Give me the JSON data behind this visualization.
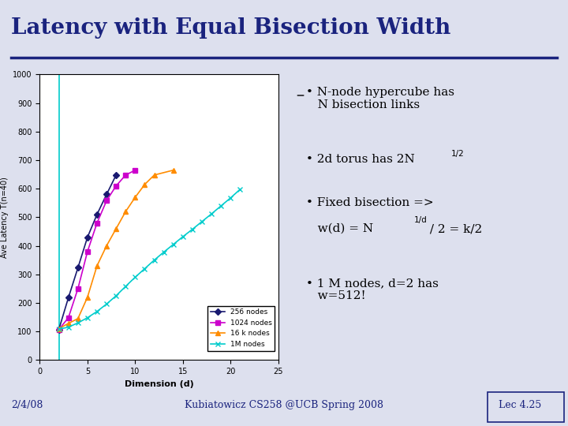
{
  "title": "Latency with Equal Bisection Width",
  "title_color": "#1a237e",
  "bg_color": "#dde0ee",
  "plot_bg": "#ffffff",
  "xlabel": "Dimension (d)",
  "ylabel": "Ave Latency T(n=40)",
  "xlim": [
    0,
    25
  ],
  "ylim": [
    0,
    1000
  ],
  "xticks": [
    0,
    5,
    10,
    15,
    20,
    25
  ],
  "yticks": [
    0,
    100,
    200,
    300,
    400,
    500,
    600,
    700,
    800,
    900,
    1000
  ],
  "series": [
    {
      "label": "256 nodes",
      "color": "#191970",
      "marker": "D",
      "markersize": 4,
      "linestyle": "-",
      "linewidth": 1.2,
      "d_values": [
        2,
        3,
        4,
        5,
        6,
        7,
        8
      ],
      "y_values": [
        107,
        218,
        323,
        430,
        510,
        580,
        648
      ]
    },
    {
      "label": "1024 nodes",
      "color": "#cc00cc",
      "marker": "s",
      "markersize": 4,
      "linestyle": "-",
      "linewidth": 1.2,
      "d_values": [
        2,
        3,
        4,
        5,
        6,
        7,
        8,
        9,
        10
      ],
      "y_values": [
        107,
        148,
        250,
        380,
        480,
        558,
        610,
        648,
        665
      ]
    },
    {
      "label": "16 k nodes",
      "color": "#ff8c00",
      "marker": "^",
      "markersize": 5,
      "linestyle": "-",
      "linewidth": 1.2,
      "d_values": [
        2,
        3,
        4,
        5,
        6,
        7,
        8,
        9,
        10,
        11,
        12,
        14
      ],
      "y_values": [
        110,
        128,
        145,
        220,
        330,
        400,
        460,
        520,
        570,
        615,
        648,
        665
      ]
    },
    {
      "label": "1M nodes",
      "color": "#00cccc",
      "marker": "x",
      "markersize": 5,
      "linestyle": "-",
      "linewidth": 1.2,
      "d_values": [
        2,
        3,
        4,
        5,
        6,
        7,
        8,
        9,
        10,
        11,
        12,
        13,
        14,
        15,
        16,
        17,
        18,
        19,
        20,
        21
      ],
      "y_values": [
        108,
        115,
        130,
        148,
        170,
        196,
        225,
        258,
        290,
        320,
        350,
        378,
        405,
        432,
        458,
        485,
        512,
        540,
        568,
        598
      ]
    }
  ],
  "vline_x": 2,
  "vline_color": "#00cccc",
  "vline_linewidth": 1.2,
  "footer_left": "2/4/08",
  "footer_center": "Kubiatowicz CS258 @UCB Spring 2008",
  "footer_right": "Lec 4.25",
  "footer_color": "#1a237e",
  "footer_fontsize": 9
}
